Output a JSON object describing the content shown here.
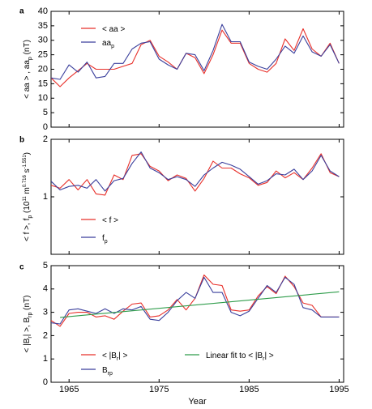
{
  "colors": {
    "red": "#e8302a",
    "blue": "#3a3f9c",
    "green": "#2e9c4a",
    "axis": "#000000"
  },
  "chart_data": [
    {
      "panel": "a",
      "type": "line",
      "ylabel": "< aa > , aa",
      "ylabel_sub": "p",
      "ylabel_unit": " (nT)",
      "xlim": [
        1963,
        1995.5
      ],
      "ylim": [
        0,
        40
      ],
      "yticks": [
        0,
        5,
        10,
        15,
        20,
        25,
        30,
        35,
        40
      ],
      "xticks": [
        1965,
        1975,
        1985,
        1995
      ],
      "legend": [
        {
          "label": "< aa >",
          "sub": "",
          "color": "red"
        },
        {
          "label": "aa",
          "sub": "p",
          "color": "blue"
        }
      ],
      "series": [
        {
          "name": "< aa >",
          "color": "red",
          "x": [
            1963,
            1964,
            1965,
            1966,
            1967,
            1968,
            1969,
            1970,
            1971,
            1972,
            1973,
            1974,
            1975,
            1976,
            1977,
            1978,
            1979,
            1980,
            1981,
            1982,
            1983,
            1984,
            1985,
            1986,
            1987,
            1988,
            1989,
            1990,
            1991,
            1992,
            1993,
            1994,
            1995
          ],
          "y": [
            17,
            14,
            17,
            19.5,
            22,
            20,
            20,
            20,
            21,
            22,
            28.5,
            30,
            24.5,
            22.5,
            20,
            25.5,
            24,
            18.5,
            25,
            33.5,
            29,
            29,
            22,
            20,
            19,
            22,
            30.5,
            26.5,
            34,
            27,
            24.5,
            29,
            22
          ]
        },
        {
          "name": "aa",
          "color": "blue",
          "x": [
            1963,
            1964,
            1965,
            1966,
            1967,
            1968,
            1969,
            1970,
            1971,
            1972,
            1973,
            1974,
            1975,
            1976,
            1977,
            1978,
            1979,
            1980,
            1981,
            1982,
            1983,
            1984,
            1985,
            1986,
            1987,
            1988,
            1989,
            1990,
            1991,
            1992,
            1993,
            1994,
            1995
          ],
          "y": [
            17,
            16.5,
            21.5,
            19,
            22.5,
            17,
            17.5,
            22,
            22,
            27,
            29,
            29.5,
            23.5,
            21.5,
            20,
            25.5,
            25,
            19.5,
            26.5,
            35.5,
            29.5,
            29.5,
            22.5,
            21,
            20,
            23.5,
            28,
            25.5,
            31.5,
            26,
            24.5,
            28.5,
            22
          ]
        }
      ]
    },
    {
      "panel": "b",
      "type": "line",
      "ylabel": "< f >, f",
      "ylabel_sub": "p",
      "ylabel_unit": " (10",
      "ylabel_sup1": "11",
      "ylabel_unit2": " m",
      "ylabel_sup2": "0.716",
      "ylabel_unit3": " s",
      "ylabel_sup3": "-1.551",
      "ylabel_end": ")",
      "xlim": [
        1963,
        1995.5
      ],
      "ylim": [
        0,
        2
      ],
      "yticks": [
        1,
        2
      ],
      "xticks": [
        1965,
        1975,
        1985,
        1995
      ],
      "legend": [
        {
          "label": "< f >",
          "sub": "",
          "color": "red"
        },
        {
          "label": "f",
          "sub": "p",
          "color": "blue"
        }
      ],
      "series": [
        {
          "name": "< f >",
          "color": "red",
          "x": [
            1963,
            1964,
            1965,
            1966,
            1967,
            1968,
            1969,
            1970,
            1971,
            1972,
            1973,
            1974,
            1975,
            1976,
            1977,
            1978,
            1979,
            1980,
            1981,
            1982,
            1983,
            1984,
            1985,
            1986,
            1987,
            1988,
            1989,
            1990,
            1991,
            1992,
            1993,
            1994,
            1995
          ],
          "y": [
            1.2,
            1.15,
            1.3,
            1.12,
            1.3,
            1.05,
            1.03,
            1.38,
            1.3,
            1.72,
            1.75,
            1.53,
            1.45,
            1.28,
            1.38,
            1.32,
            1.1,
            1.32,
            1.62,
            1.5,
            1.5,
            1.4,
            1.33,
            1.2,
            1.25,
            1.45,
            1.33,
            1.42,
            1.3,
            1.5,
            1.75,
            1.42,
            1.35
          ]
        },
        {
          "name": "f",
          "color": "blue",
          "x": [
            1963,
            1964,
            1965,
            1966,
            1967,
            1968,
            1969,
            1970,
            1971,
            1972,
            1973,
            1974,
            1975,
            1976,
            1977,
            1978,
            1979,
            1980,
            1981,
            1982,
            1983,
            1984,
            1985,
            1986,
            1987,
            1988,
            1989,
            1990,
            1991,
            1992,
            1993,
            1994,
            1995
          ],
          "y": [
            1.27,
            1.12,
            1.18,
            1.2,
            1.15,
            1.3,
            1.1,
            1.28,
            1.32,
            1.58,
            1.78,
            1.5,
            1.42,
            1.3,
            1.35,
            1.3,
            1.18,
            1.38,
            1.5,
            1.6,
            1.55,
            1.48,
            1.35,
            1.22,
            1.28,
            1.4,
            1.38,
            1.48,
            1.3,
            1.45,
            1.72,
            1.45,
            1.35
          ]
        }
      ]
    },
    {
      "panel": "c",
      "type": "line",
      "ylabel": "< |B",
      "ylabel_sub": "r",
      "ylabel_mid": "| >, B",
      "ylabel_sub2": "rp",
      "ylabel_unit": " (nT)",
      "xlabel": "Year",
      "xlim": [
        1963,
        1995.5
      ],
      "ylim": [
        0,
        5
      ],
      "yticks": [
        0,
        1,
        2,
        3,
        4,
        5
      ],
      "xticks": [
        1965,
        1975,
        1985,
        1995
      ],
      "legend": [
        {
          "label": "< |B",
          "sub": "r",
          "tail": "| >",
          "color": "red"
        },
        {
          "label": "B",
          "sub": "rp",
          "tail": "",
          "color": "blue"
        },
        {
          "label": "Linear fit to < |B",
          "sub": "r",
          "tail": "| >",
          "color": "green"
        }
      ],
      "series": [
        {
          "name": "< |Br| >",
          "color": "red",
          "x": [
            1963,
            1964,
            1965,
            1966,
            1967,
            1968,
            1969,
            1970,
            1971,
            1972,
            1973,
            1974,
            1975,
            1976,
            1977,
            1978,
            1979,
            1980,
            1981,
            1982,
            1983,
            1984,
            1985,
            1986,
            1987,
            1988,
            1989,
            1990,
            1991,
            1992,
            1993,
            1994,
            1995
          ],
          "y": [
            2.65,
            2.4,
            2.95,
            3.0,
            3.0,
            2.8,
            2.85,
            2.7,
            3.05,
            3.35,
            3.4,
            2.8,
            2.85,
            3.1,
            3.55,
            3.1,
            3.6,
            4.6,
            4.2,
            4.15,
            3.1,
            3.05,
            3.1,
            3.7,
            4.1,
            3.8,
            4.55,
            4.1,
            3.4,
            3.3,
            2.8,
            2.8,
            2.8
          ]
        },
        {
          "name": "Brp",
          "color": "blue",
          "x": [
            1963,
            1964,
            1965,
            1966,
            1967,
            1968,
            1969,
            1970,
            1971,
            1972,
            1973,
            1974,
            1975,
            1976,
            1977,
            1978,
            1979,
            1980,
            1981,
            1982,
            1983,
            1984,
            1985,
            1986,
            1987,
            1988,
            1989,
            1990,
            1991,
            1992,
            1993,
            1994,
            1995
          ],
          "y": [
            2.55,
            2.5,
            3.1,
            3.15,
            3.05,
            2.95,
            3.15,
            2.95,
            3.15,
            3.1,
            3.25,
            2.7,
            2.65,
            3.0,
            3.5,
            3.85,
            3.6,
            4.5,
            3.85,
            3.85,
            3.0,
            2.85,
            3.05,
            3.6,
            4.15,
            3.85,
            4.5,
            4.2,
            3.2,
            3.1,
            2.8,
            2.8,
            2.8
          ]
        },
        {
          "name": "Linear fit to < |Br| >",
          "color": "green",
          "x": [
            1964,
            1995
          ],
          "y": [
            2.78,
            3.88
          ]
        }
      ]
    }
  ]
}
